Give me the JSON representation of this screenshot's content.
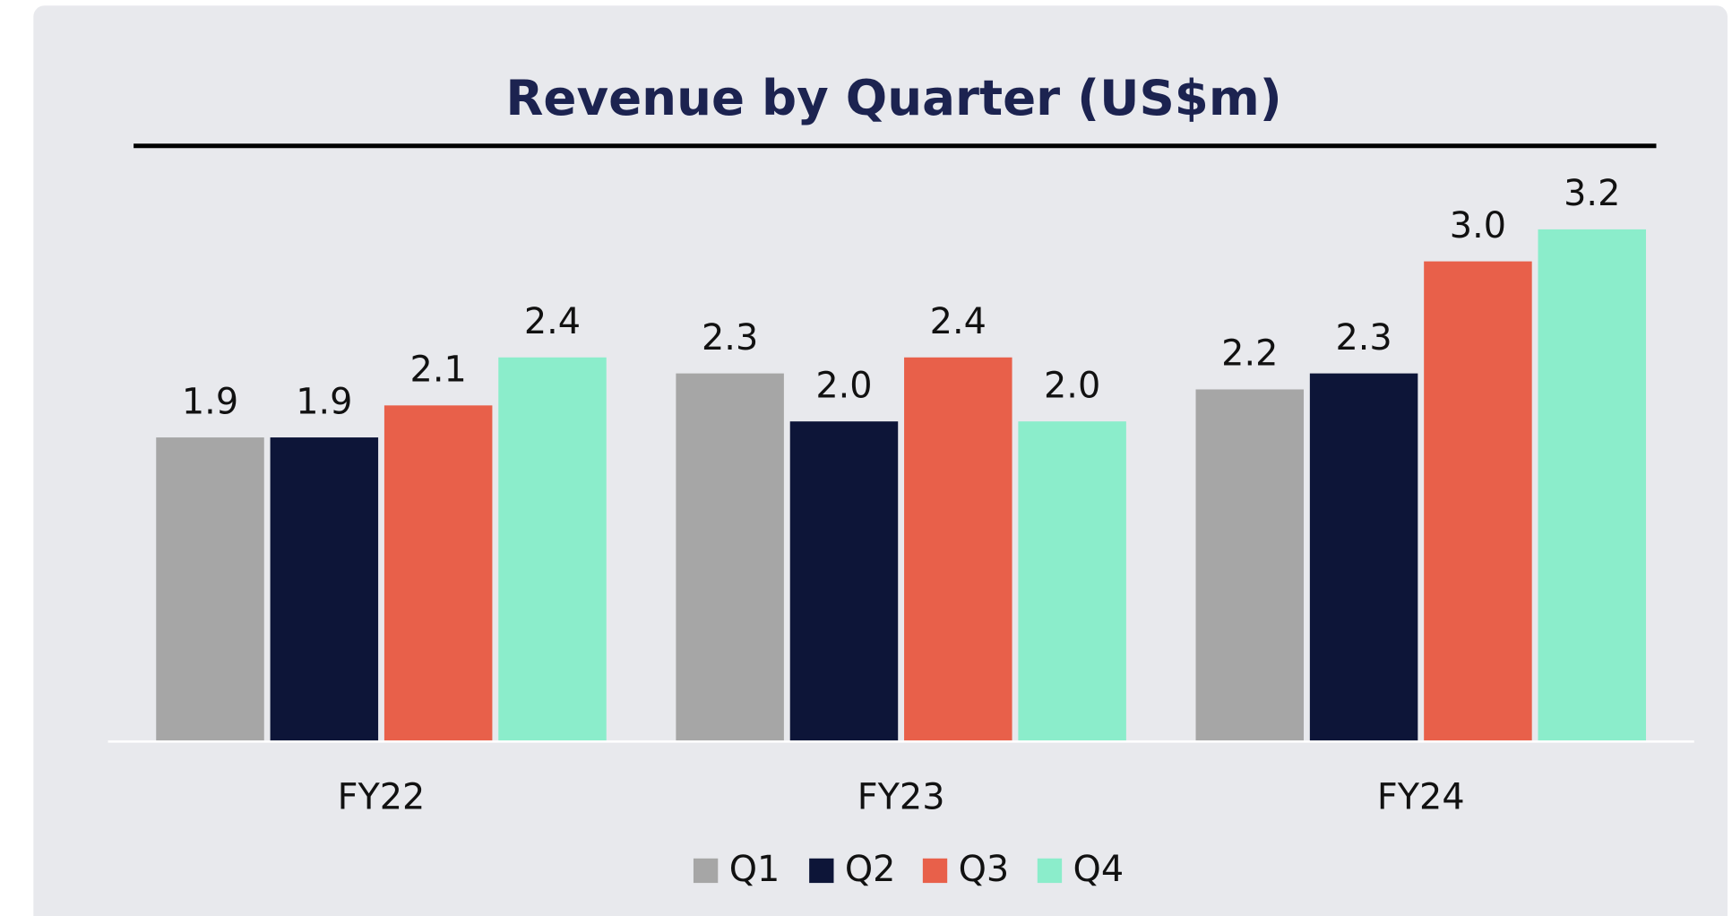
{
  "chart_data": {
    "type": "bar",
    "title": "Revenue by Quarter (US$m)",
    "categories": [
      "FY22",
      "FY23",
      "FY24"
    ],
    "series": [
      {
        "name": "Q1",
        "color": "#a6a6a6",
        "values": [
          1.9,
          2.3,
          2.2
        ],
        "value_labels": [
          "1.9",
          "2.3",
          "2.2"
        ]
      },
      {
        "name": "Q2",
        "color": "#0d1538",
        "values": [
          1.9,
          2.0,
          2.3
        ],
        "value_labels": [
          "1.9",
          "2.0",
          "2.3"
        ]
      },
      {
        "name": "Q3",
        "color": "#e8604a",
        "values": [
          2.1,
          2.4,
          3.0
        ],
        "value_labels": [
          "2.1",
          "2.4",
          "3.0"
        ]
      },
      {
        "name": "Q4",
        "color": "#8bedcb",
        "values": [
          2.4,
          2.0,
          3.2
        ],
        "value_labels": [
          "2.4",
          "2.0",
          "3.2"
        ]
      }
    ],
    "legend": "bottom"
  }
}
